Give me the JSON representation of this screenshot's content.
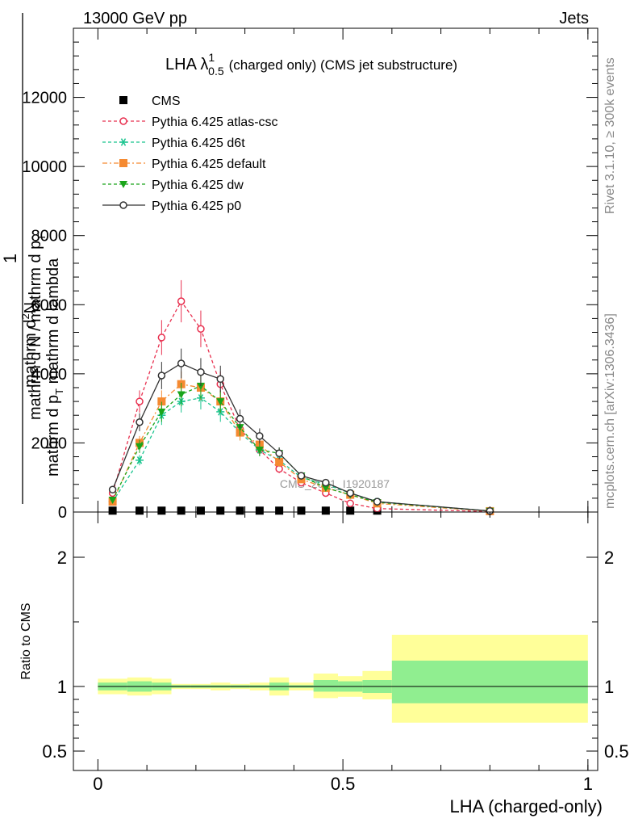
{
  "header": {
    "left": "13000 GeV pp",
    "right": "Jets"
  },
  "side_labels": {
    "rivet": "Rivet 3.1.10, ≥ 300k events",
    "mcplots": "mcplots.cern.ch [arXiv:1306.3436]"
  },
  "chart_data": [
    {
      "type": "line",
      "panel": "main",
      "title_main": "LHA λ",
      "title_sup": "1",
      "title_sub": "0.5",
      "title_tail": "(charged only) (CMS jet substructure)",
      "ylabel": {
        "l1_num": "1",
        "l1_den": "mathrm d N / mathrm d p",
        "l1_den_sub": "T",
        "l2_num": "mathrm d",
        "l2_num_sup": "2",
        "l2_num_tail": "N",
        "l2_den": "mathrm d p",
        "l2_den_sub": "T",
        "l2_den_tail": " mathrm d lambda"
      },
      "watermark": "CMS_2021_I1920187",
      "xlim": [
        -0.05,
        1.02
      ],
      "ylim": [
        0,
        14000
      ],
      "y_ticks": [
        0,
        2000,
        4000,
        6000,
        8000,
        10000,
        12000
      ],
      "y_tick_labels": [
        "0",
        "2000",
        "4000",
        "6000",
        "8000",
        "10000",
        "12000"
      ],
      "legend_position": "top-left",
      "x": [
        0.03,
        0.085,
        0.13,
        0.17,
        0.21,
        0.25,
        0.29,
        0.33,
        0.37,
        0.415,
        0.465,
        0.515,
        0.57,
        0.8
      ],
      "series": [
        {
          "name": "CMS",
          "color": "#000000",
          "marker": "square-filled",
          "dash": "none",
          "values": [
            40,
            40,
            40,
            40,
            40,
            40,
            40,
            40,
            40,
            40,
            40,
            40,
            40,
            0
          ]
        },
        {
          "name": "Pythia 6.425 atlas-csc",
          "color": "#e8304f",
          "marker": "circle-open",
          "dash": "4,3",
          "values": [
            550,
            3200,
            5050,
            6100,
            5300,
            3700,
            2400,
            1800,
            1250,
            850,
            550,
            250,
            100,
            15
          ]
        },
        {
          "name": "Pythia 6.425 d6t",
          "color": "#19c48e",
          "marker": "star",
          "dash": "4,3",
          "values": [
            300,
            1500,
            2800,
            3200,
            3300,
            2900,
            2300,
            1800,
            1500,
            1000,
            800,
            550,
            300,
            30
          ]
        },
        {
          "name": "Pythia 6.425 default",
          "color": "#f58a31",
          "marker": "square-filled",
          "dash": "6,3,2,3",
          "values": [
            300,
            2000,
            3200,
            3700,
            3600,
            3200,
            2300,
            1950,
            1450,
            950,
            700,
            500,
            250,
            25
          ]
        },
        {
          "name": "Pythia 6.425 dw",
          "color": "#1aa51a",
          "marker": "triangle-down-filled",
          "dash": "4,3",
          "values": [
            350,
            1900,
            2900,
            3400,
            3650,
            3200,
            2450,
            1800,
            1700,
            1050,
            700,
            500,
            280,
            30
          ]
        },
        {
          "name": "Pythia 6.425 p0",
          "color": "#333333",
          "marker": "circle-open",
          "dash": "none",
          "values": [
            650,
            2600,
            3950,
            4300,
            4050,
            3850,
            2700,
            2200,
            1700,
            1050,
            850,
            550,
            300,
            30
          ]
        }
      ]
    },
    {
      "type": "area",
      "panel": "ratio",
      "ylabel": "Ratio to CMS",
      "xlabel": "LHA (charged-only)",
      "xlim": [
        -0.05,
        1.02
      ],
      "ylim": [
        0.35,
        2.35
      ],
      "y_ticks": [
        0.5,
        1,
        2
      ],
      "y_tick_labels": [
        "0.5",
        "1",
        "2"
      ],
      "x_ticks": [
        0,
        0.5,
        1
      ],
      "x_tick_labels": [
        "0",
        "0.5",
        "1"
      ],
      "bins": [
        0,
        0.06,
        0.11,
        0.15,
        0.19,
        0.23,
        0.27,
        0.31,
        0.35,
        0.39,
        0.44,
        0.49,
        0.54,
        0.6,
        1.0
      ],
      "band_stat": {
        "name": "stat",
        "color": "#90ee90",
        "lo": [
          0.97,
          0.96,
          0.97,
          0.99,
          0.99,
          0.99,
          0.99,
          0.99,
          0.97,
          0.99,
          0.96,
          0.96,
          0.95,
          0.87
        ],
        "hi": [
          1.03,
          1.04,
          1.03,
          1.01,
          1.01,
          1.01,
          1.01,
          1.01,
          1.03,
          1.01,
          1.05,
          1.04,
          1.05,
          1.2
        ]
      },
      "band_total": {
        "name": "stat+syst",
        "color": "#ffff99",
        "lo": [
          0.94,
          0.93,
          0.94,
          0.98,
          0.98,
          0.97,
          0.98,
          0.97,
          0.93,
          0.97,
          0.91,
          0.92,
          0.9,
          0.72
        ]
      },
      "band_total_hi": [
        1.06,
        1.07,
        1.06,
        1.02,
        1.02,
        1.03,
        1.02,
        1.03,
        1.07,
        1.03,
        1.1,
        1.08,
        1.12,
        1.4
      ],
      "reference": 1
    }
  ]
}
